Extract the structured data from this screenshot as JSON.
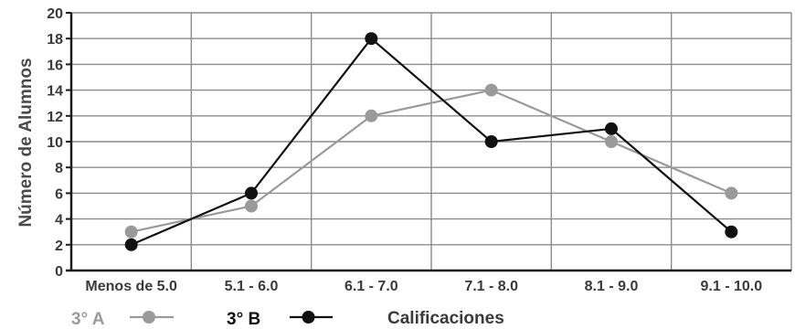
{
  "chart_data": {
    "type": "line",
    "categories": [
      "Menos de 5.0",
      "5.1 - 6.0",
      "6.1 - 7.0",
      "7.1 - 8.0",
      "8.1 - 9.0",
      "9.1 - 10.0"
    ],
    "series": [
      {
        "name": "3° A",
        "values": [
          3,
          5,
          12,
          14,
          10,
          6
        ],
        "color": "#9a9a9a"
      },
      {
        "name": "3° B",
        "values": [
          2,
          6,
          18,
          10,
          11,
          3
        ],
        "color": "#111111"
      }
    ],
    "title": "",
    "xlabel": "Calificaciones",
    "ylabel": "Número de Alumnos",
    "ylim": [
      0,
      20
    ],
    "yticks": [
      0,
      2,
      4,
      6,
      8,
      10,
      12,
      14,
      16,
      18,
      20
    ],
    "grid": true,
    "legend_position": "bottom-left",
    "colors": {
      "grid": "#8c8c8c",
      "axis": "#1a1a1a",
      "text": "#3a3a3a"
    }
  }
}
